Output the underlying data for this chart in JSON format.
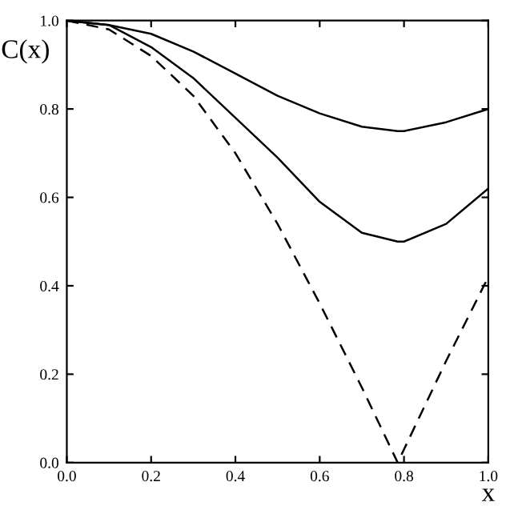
{
  "chart_data": {
    "type": "line",
    "xlabel": "x",
    "ylabel": "C(x)",
    "xlim": [
      0,
      1
    ],
    "ylim": [
      0,
      1
    ],
    "xticks": [
      {
        "value": 0,
        "label": "0.0"
      },
      {
        "value": 0.2,
        "label": "0.2"
      },
      {
        "value": 0.4,
        "label": "0.4"
      },
      {
        "value": 0.6,
        "label": "0.6"
      },
      {
        "value": 0.8,
        "label": "0.8"
      },
      {
        "value": 1,
        "label": "1.0"
      }
    ],
    "yticks": [
      {
        "value": 0,
        "label": "0.0"
      },
      {
        "value": 0.2,
        "label": "0.2"
      },
      {
        "value": 0.4,
        "label": "0.4"
      },
      {
        "value": 0.6,
        "label": "0.6"
      },
      {
        "value": 0.8,
        "label": "0.8"
      },
      {
        "value": 1,
        "label": "1.0"
      }
    ],
    "x": [
      0,
      0.1,
      0.2,
      0.3,
      0.4,
      0.5,
      0.6,
      0.7,
      0.785,
      0.8,
      0.9,
      1.0
    ],
    "grid": false,
    "marker": "none",
    "series": [
      {
        "color": "#000000",
        "line_style": "solid",
        "values": [
          1,
          0.99,
          0.97,
          0.93,
          0.88,
          0.83,
          0.79,
          0.76,
          0.75,
          0.75,
          0.77,
          0.8
        ]
      },
      {
        "color": "#000000",
        "line_style": "solid",
        "values": [
          1,
          0.99,
          0.94,
          0.87,
          0.78,
          0.69,
          0.59,
          0.52,
          0.5,
          0.5,
          0.54,
          0.62
        ]
      },
      {
        "color": "#000000",
        "line_style": "dashed",
        "values": [
          1,
          0.98,
          0.92,
          0.83,
          0.7,
          0.54,
          0.36,
          0.17,
          0,
          0.03,
          0.23,
          0.42
        ]
      }
    ]
  }
}
